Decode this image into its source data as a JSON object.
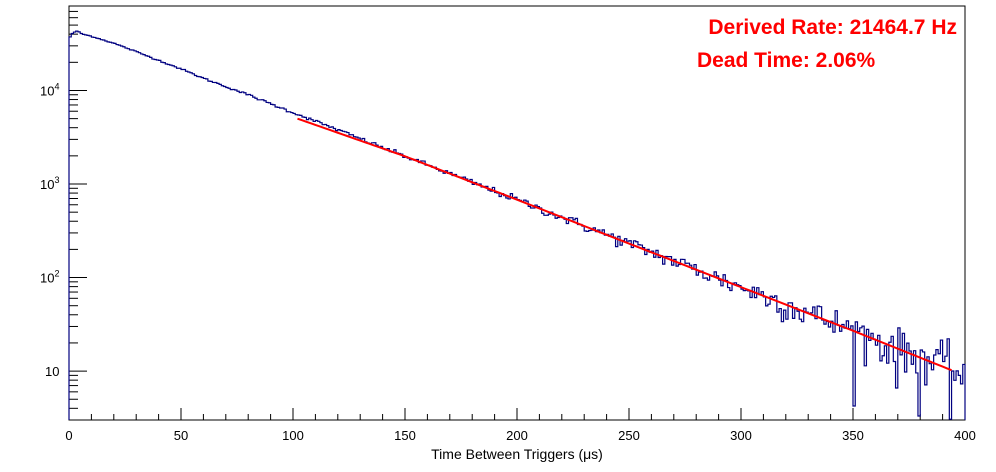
{
  "chart_data": {
    "type": "histogram",
    "title": "",
    "xlabel": "Time Between Triggers (μs)",
    "ylabel": "",
    "xlim": [
      0,
      400
    ],
    "ylim": [
      3,
      80000
    ],
    "y_scale": "log",
    "grid": false,
    "x_ticks": [
      "0",
      "50",
      "100",
      "150",
      "200",
      "250",
      "300",
      "350",
      "400"
    ],
    "y_ticks": [
      {
        "value": 10,
        "base": "10",
        "exp": ""
      },
      {
        "value": 100,
        "base": "10",
        "exp": "2"
      },
      {
        "value": 1000,
        "base": "10",
        "exp": "3"
      },
      {
        "value": 10000,
        "base": "10",
        "exp": "4"
      }
    ],
    "annotations": [
      "Derived Rate: 21464.7 Hz",
      "Dead Time: 2.06%"
    ],
    "series": [
      {
        "kind": "histogram",
        "color": "#000080",
        "bin_width": 1,
        "x": [
          0,
          2,
          4,
          6,
          8,
          10,
          20,
          30,
          40,
          50,
          60,
          70,
          80,
          90,
          100,
          110,
          120,
          130,
          140,
          150,
          160,
          170,
          180,
          190,
          200,
          210,
          220,
          230,
          240,
          250,
          260,
          270,
          280,
          290,
          300,
          310,
          320,
          330,
          340,
          350,
          360,
          370,
          380,
          390,
          400
        ],
        "y": [
          36000,
          42000,
          43000,
          40000,
          39000,
          38000,
          32000,
          26000,
          21000,
          17000,
          13500,
          11000,
          9000,
          7200,
          5800,
          4700,
          3800,
          3050,
          2450,
          1980,
          1600,
          1290,
          1040,
          840,
          680,
          545,
          440,
          355,
          287,
          231,
          187,
          151,
          122,
          98,
          79,
          64,
          52,
          42,
          34,
          27,
          22,
          17.5,
          14,
          11.5,
          9.3
        ]
      },
      {
        "kind": "fit",
        "color": "#ff0000",
        "x": [
          102,
          150,
          200,
          250,
          300,
          350,
          395
        ],
        "y": [
          5000,
          1980,
          680,
          231,
          79,
          27,
          10
        ]
      }
    ]
  }
}
